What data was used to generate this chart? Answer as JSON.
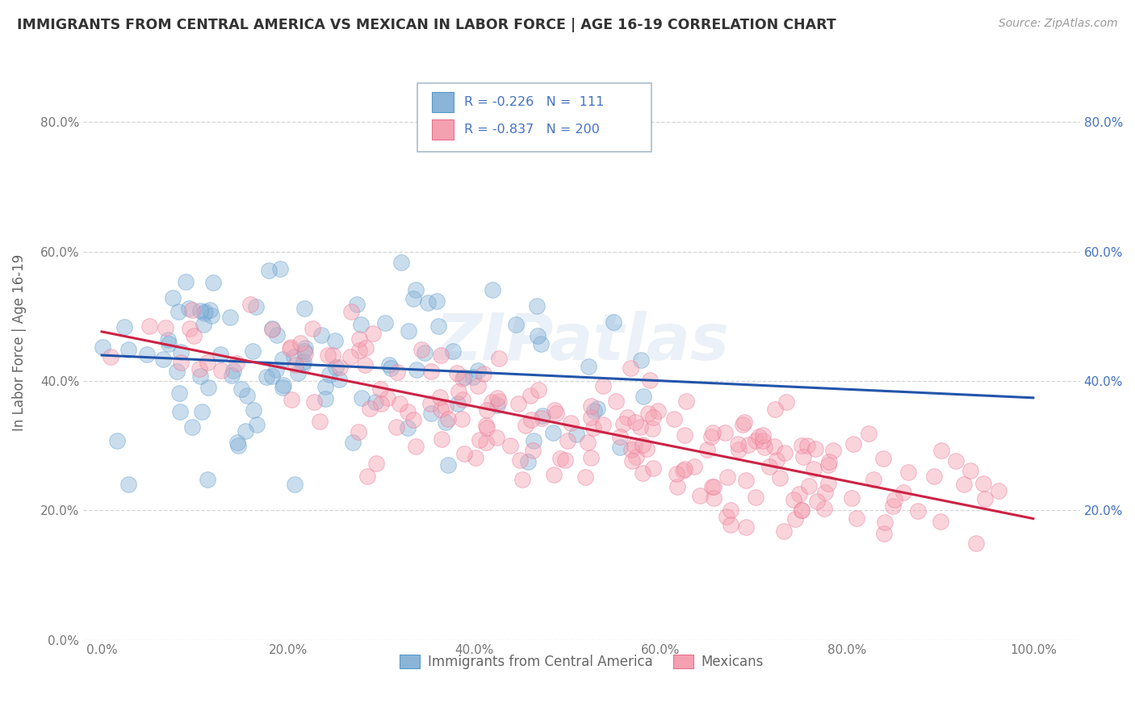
{
  "title": "IMMIGRANTS FROM CENTRAL AMERICA VS MEXICAN IN LABOR FORCE | AGE 16-19 CORRELATION CHART",
  "source": "Source: ZipAtlas.com",
  "ylabel": "In Labor Force | Age 16-19",
  "xlabel": "",
  "xlim": [
    -0.02,
    1.05
  ],
  "ylim": [
    0.0,
    0.92
  ],
  "xticks": [
    0.0,
    0.2,
    0.4,
    0.6,
    0.8,
    1.0
  ],
  "yticks": [
    0.0,
    0.2,
    0.4,
    0.6,
    0.8
  ],
  "right_yticks": [
    0.2,
    0.4,
    0.6,
    0.8
  ],
  "blue_color": "#8ab4d8",
  "pink_color": "#f4a0b0",
  "blue_edge_color": "#5599cc",
  "pink_edge_color": "#e87090",
  "blue_line_color": "#2255aa",
  "pink_line_color": "#cc2244",
  "watermark": "ZIPatlas",
  "legend_label1": "Immigrants from Central America",
  "legend_label2": "Mexicans",
  "background_color": "#ffffff",
  "grid_color": "#cccccc",
  "axis_color": "#4472c4",
  "title_color": "#333333",
  "ylabel_color": "#666666",
  "source_color": "#999999",
  "legend_text_color": "#4472c4",
  "bottom_legend_color": "#666666"
}
